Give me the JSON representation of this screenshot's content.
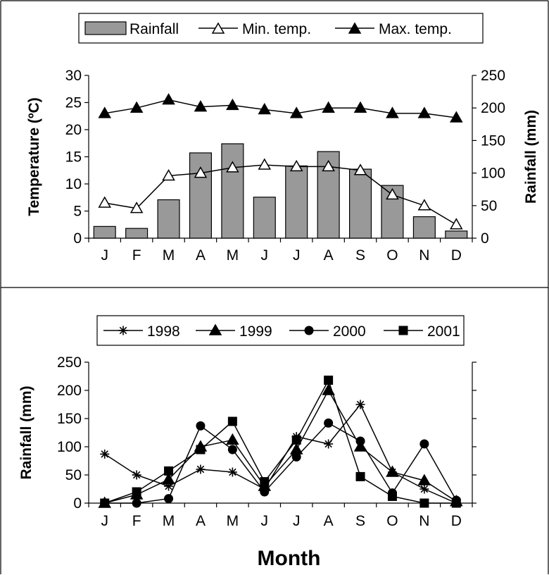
{
  "chart_data": [
    {
      "type": "bar",
      "categories": [
        "J",
        "F",
        "M",
        "A",
        "M",
        "J",
        "J",
        "A",
        "S",
        "O",
        "N",
        "D"
      ],
      "series": [
        {
          "name": "Rainfall",
          "type": "bar",
          "axis": "right",
          "values": [
            18,
            15,
            59,
            131,
            145,
            63,
            111,
            133,
            106,
            81,
            33,
            11
          ]
        },
        {
          "name": "Min. temp.",
          "type": "line",
          "marker": "open-triangle",
          "axis": "left",
          "values": [
            6.5,
            5.5,
            11.5,
            12,
            13,
            13.5,
            13.2,
            13.2,
            12.5,
            8,
            6,
            2.5
          ]
        },
        {
          "name": "Max. temp.",
          "type": "line",
          "marker": "filled-triangle",
          "axis": "left",
          "values": [
            23,
            24,
            25.5,
            24.2,
            24.5,
            23.7,
            23,
            24,
            24,
            23,
            23,
            22.2
          ]
        }
      ],
      "xlabel": "",
      "ylabel": "Temperature (ºC)",
      "y2label": "Rainfall (mm)",
      "ylim": [
        0,
        30
      ],
      "y2lim": [
        0,
        250
      ],
      "yticks": [
        "0",
        "5",
        "10",
        "15",
        "20",
        "25",
        "30"
      ],
      "y2ticks": [
        "0",
        "50",
        "100",
        "150",
        "200",
        "250"
      ],
      "legend": "top",
      "grid": false
    },
    {
      "type": "line",
      "categories": [
        "J",
        "F",
        "M",
        "A",
        "M",
        "J",
        "J",
        "A",
        "S",
        "O",
        "N",
        "D"
      ],
      "series": [
        {
          "name": "1998",
          "marker": "star",
          "values": [
            87,
            50,
            30,
            60,
            55,
            25,
            118,
            105,
            175,
            55,
            25,
            0
          ]
        },
        {
          "name": "1999",
          "marker": "filled-triangle",
          "values": [
            0,
            15,
            42,
            100,
            112,
            30,
            95,
            200,
            100,
            55,
            40,
            3
          ]
        },
        {
          "name": "2000",
          "marker": "filled-circle",
          "values": [
            0,
            0,
            8,
            137,
            95,
            20,
            82,
            142,
            110,
            18,
            105,
            5
          ]
        },
        {
          "name": "2001",
          "marker": "filled-square",
          "values": [
            0,
            20,
            57,
            95,
            145,
            38,
            112,
            218,
            47,
            12,
            0,
            0
          ]
        }
      ],
      "xlabel": "Month",
      "ylabel": "Rainfall (mm)",
      "ylim": [
        0,
        250
      ],
      "yticks": [
        "0",
        "50",
        "100",
        "150",
        "200",
        "250"
      ],
      "legend": "top",
      "grid": false
    }
  ]
}
